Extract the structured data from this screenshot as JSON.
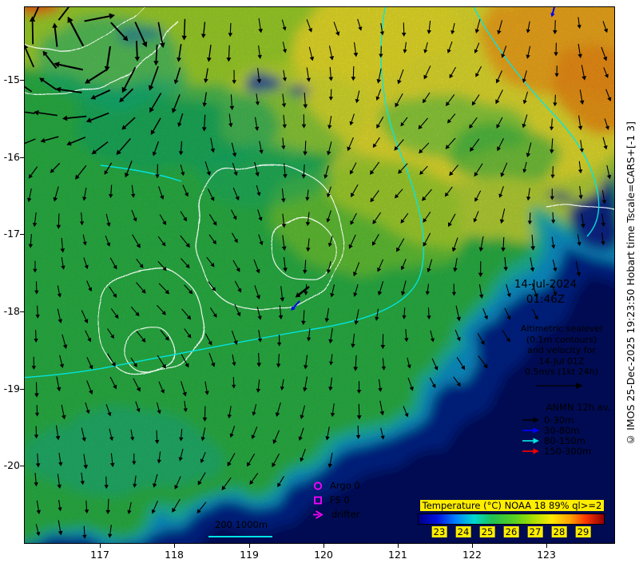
{
  "axes": {
    "x_ticks": [
      {
        "label": "117",
        "pos": 12.84
      },
      {
        "label": "118",
        "pos": 25.41
      },
      {
        "label": "119",
        "pos": 38.11
      },
      {
        "label": "120",
        "pos": 50.68
      },
      {
        "label": "121",
        "pos": 63.24
      },
      {
        "label": "122",
        "pos": 75.81
      },
      {
        "label": "123",
        "pos": 88.38
      }
    ],
    "y_ticks": [
      {
        "label": "-15",
        "pos": 13.67
      },
      {
        "label": "-16",
        "pos": 28.08
      },
      {
        "label": "-17",
        "pos": 42.42
      },
      {
        "label": "-18",
        "pos": 56.76
      },
      {
        "label": "-19",
        "pos": 71.17
      },
      {
        "label": "-20",
        "pos": 85.51
      }
    ]
  },
  "datetime": {
    "date": "14-Jul-2024",
    "time": "01:46Z"
  },
  "altimetric": {
    "lines": [
      "Altimetric sealevel",
      "(0.1m contours)",
      "and velocity for",
      "14-Jul 01Z",
      "0.5m/s (1kt 24h)"
    ]
  },
  "anmn": {
    "title": "ANMN 12h av.",
    "items": [
      {
        "label": "0-30m",
        "color": "#000000"
      },
      {
        "label": "30-80m",
        "color": "#0000ff"
      },
      {
        "label": "80-150m",
        "color": "#00e0e0"
      },
      {
        "label": "150-300m",
        "color": "#f00000"
      }
    ]
  },
  "platform_legend": [
    {
      "symbol": "circle",
      "label": "Argo 0",
      "color": "#ff00ff"
    },
    {
      "symbol": "square",
      "label": "FS 0",
      "color": "#ff00ff"
    },
    {
      "symbol": "arrow",
      "label": "drifter",
      "color": "#ff00ff"
    }
  ],
  "isobath_legend": {
    "label": "200 1000m",
    "line_color": "#00e5e5"
  },
  "colorbar": {
    "title": "Temperature (°C) NOAA 18 89% ql>=2",
    "min": 22.1,
    "max": 29.9,
    "ticks": [
      23,
      24,
      25,
      26,
      27,
      28,
      29
    ],
    "label_bg": "#ffee00",
    "stops": [
      {
        "p": 0,
        "c": "#000085"
      },
      {
        "p": 10,
        "c": "#0010e0"
      },
      {
        "p": 20,
        "c": "#0080ff"
      },
      {
        "p": 30,
        "c": "#00d8d0"
      },
      {
        "p": 40,
        "c": "#20c050"
      },
      {
        "p": 52,
        "c": "#58d020"
      },
      {
        "p": 62,
        "c": "#a8e000"
      },
      {
        "p": 72,
        "c": "#ffe800"
      },
      {
        "p": 82,
        "c": "#ffa000"
      },
      {
        "p": 90,
        "c": "#ff3800"
      },
      {
        "p": 100,
        "c": "#900000"
      }
    ]
  },
  "copyright": "© IMOS 25-Dec-2025 19:23:50 Hobart time Tscale=CARS+[-1 3]",
  "vectors": {
    "color": "#000000",
    "spacing_x": 31,
    "spacing_y": 30,
    "base_len": 11
  }
}
